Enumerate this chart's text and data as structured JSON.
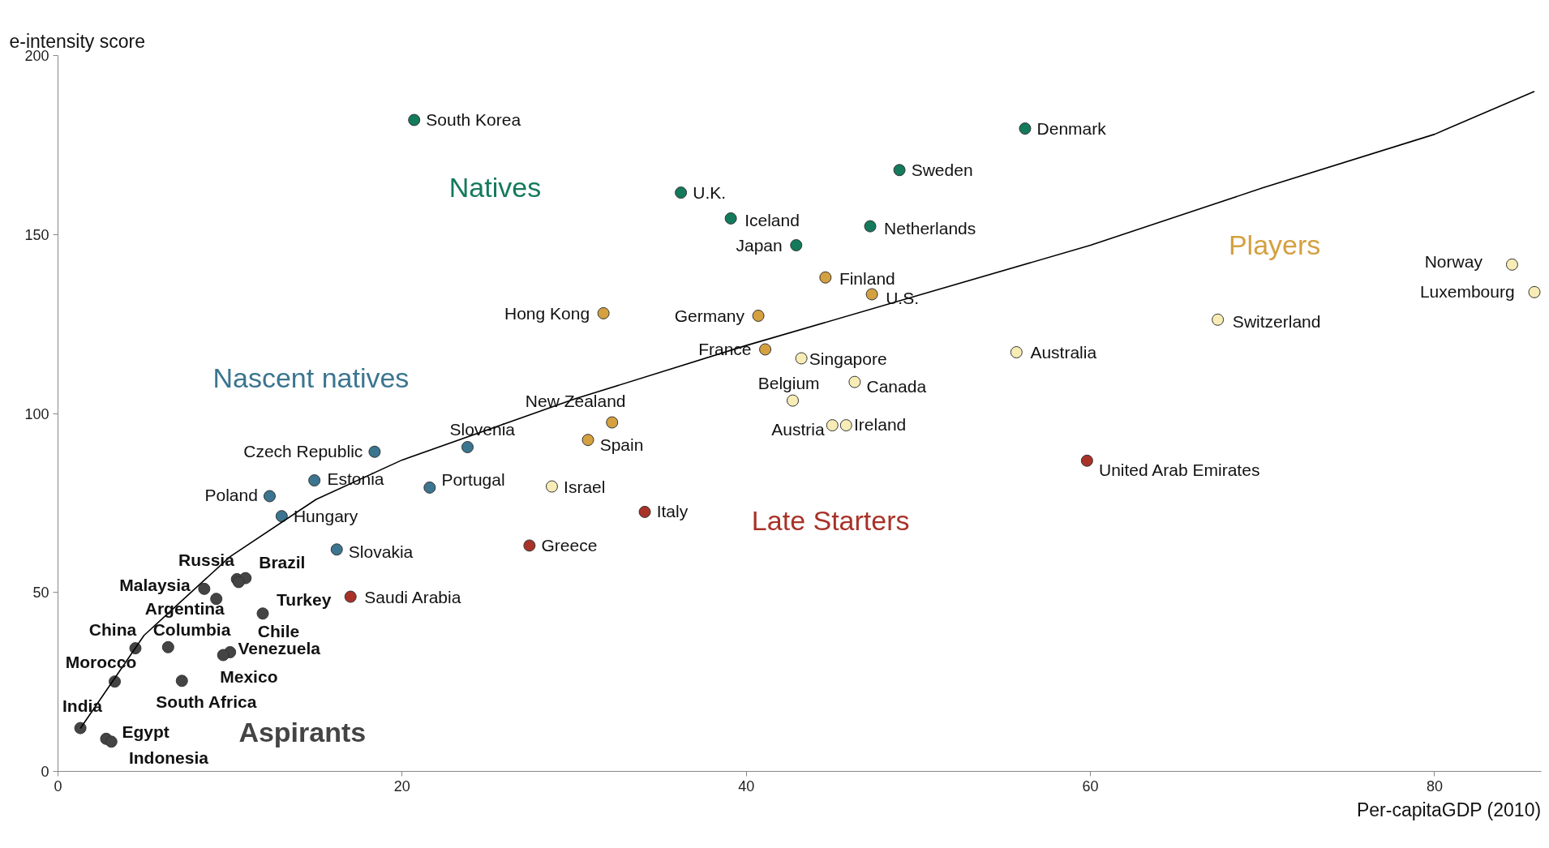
{
  "chart_data": {
    "type": "scatter",
    "xlabel": "Per-capitaGDP (2010)",
    "ylabel": "e-intensity score",
    "xlim": [
      0,
      86.2
    ],
    "ylim": [
      0,
      200
    ],
    "xticks": [
      0,
      20,
      40,
      60,
      80
    ],
    "yticks": [
      0,
      50,
      100,
      150,
      200
    ],
    "grid": false,
    "legend": false,
    "marker": "circle",
    "series": [
      {
        "name": "Natives",
        "color": "#137a5c",
        "x": [
          20.7,
          36.2,
          39.1,
          42.9,
          47.2,
          48.9,
          56.2
        ],
        "values": [
          182,
          161.7,
          154.5,
          147,
          152.3,
          168,
          179.6
        ]
      },
      {
        "name": "Players",
        "color": "#d4a040",
        "x": [
          31.7,
          40.7,
          44.6,
          47.3,
          41.1,
          32.2,
          30.8,
          43.2,
          42.7,
          46.3,
          45.0,
          45.8,
          55.7,
          67.4,
          84.5,
          85.8,
          28.7
        ],
        "values": [
          128,
          127.3,
          138,
          133.3,
          117.9,
          97.5,
          92.6,
          115.4,
          103.6,
          108.8,
          96.7,
          96.7,
          117.1,
          126.2,
          141.6,
          133.9,
          79.6
        ],
        "colors": [
          "#d4a040",
          "#d4a040",
          "#d4a040",
          "#d4a040",
          "#d4a040",
          "#d4a040",
          "#d4a040",
          "#f7ecb5",
          "#f7ecb5",
          "#f7ecb5",
          "#f7ecb5",
          "#f7ecb5",
          "#f7ecb5",
          "#f7ecb5",
          "#f7ecb5",
          "#f7ecb5",
          "#f7ecb5"
        ]
      },
      {
        "name": "Nascent natives",
        "color": "#3b7590",
        "x": [
          18.4,
          23.8,
          14.9,
          21.6,
          12.3,
          13.0,
          16.2
        ],
        "values": [
          89.3,
          90.6,
          81.3,
          79.3,
          76.9,
          71.3,
          62
        ]
      },
      {
        "name": "Late Starters",
        "color": "#a83228",
        "x": [
          59.8,
          34.1,
          27.4,
          17.0
        ],
        "values": [
          86.8,
          72.5,
          63.1,
          48.8
        ]
      },
      {
        "name": "Aspirants",
        "color": "#444444",
        "x": [
          10.4,
          10.9,
          10.5,
          8.5,
          9.2,
          11.9,
          4.5,
          6.4,
          10.0,
          9.6,
          3.3,
          7.2,
          1.3,
          2.8,
          3.1
        ],
        "values": [
          53.7,
          54,
          52.9,
          51,
          48.2,
          44.1,
          34.4,
          34.7,
          33.3,
          32.5,
          25.1,
          25.3,
          12.1,
          9.1,
          8.3
        ]
      },
      {
        "type": "line",
        "color": "#000000",
        "x": [
          1.3,
          5,
          10,
          15,
          20,
          30,
          40,
          50,
          60,
          70,
          80,
          85.8
        ],
        "values": [
          12,
          38,
          60,
          76,
          87,
          104,
          119,
          133,
          147,
          163,
          178,
          190
        ],
        "marker": "none"
      }
    ],
    "annotations": [
      {
        "text": "South  Korea",
        "x": 20.7,
        "y": 182
      },
      {
        "text": "U.K.",
        "x": 36.2,
        "y": 161.7
      },
      {
        "text": "Iceland",
        "x": 39.1,
        "y": 154.5
      },
      {
        "text": "Japan",
        "x": 42.9,
        "y": 147
      },
      {
        "text": "Netherlands",
        "x": 47.2,
        "y": 152.3
      },
      {
        "text": "Sweden",
        "x": 48.9,
        "y": 168
      },
      {
        "text": "Denmark",
        "x": 56.2,
        "y": 179.6
      },
      {
        "text": "Hong Kong",
        "x": 31.7,
        "y": 128
      },
      {
        "text": "Germany",
        "x": 40.7,
        "y": 127.3
      },
      {
        "text": "Finland",
        "x": 44.6,
        "y": 138
      },
      {
        "text": "U.S.",
        "x": 47.3,
        "y": 133.3
      },
      {
        "text": "France",
        "x": 41.1,
        "y": 117.9
      },
      {
        "text": "New Zealand",
        "x": 32.2,
        "y": 97.5
      },
      {
        "text": "Spain",
        "x": 30.8,
        "y": 92.6
      },
      {
        "text": "Singapore",
        "x": 43.2,
        "y": 115.4
      },
      {
        "text": "Belgium",
        "x": 42.7,
        "y": 103.6
      },
      {
        "text": "Canada",
        "x": 46.3,
        "y": 108.8
      },
      {
        "text": "Austria",
        "x": 45.0,
        "y": 96.7
      },
      {
        "text": "Ireland",
        "x": 45.8,
        "y": 96.7
      },
      {
        "text": "Australia",
        "x": 55.7,
        "y": 117.1
      },
      {
        "text": "Switzerland",
        "x": 67.4,
        "y": 126.2
      },
      {
        "text": "Norway",
        "x": 84.5,
        "y": 141.6
      },
      {
        "text": "Luxembourg",
        "x": 85.8,
        "y": 133.9
      },
      {
        "text": "Israel",
        "x": 28.7,
        "y": 79.6
      },
      {
        "text": "Czech Republic",
        "x": 18.4,
        "y": 89.3
      },
      {
        "text": "Slovenia",
        "x": 23.8,
        "y": 90.6
      },
      {
        "text": "Estonia",
        "x": 14.9,
        "y": 81.3
      },
      {
        "text": "Portugal",
        "x": 21.6,
        "y": 79.3
      },
      {
        "text": "Poland",
        "x": 12.3,
        "y": 76.9
      },
      {
        "text": "Hungary",
        "x": 13.0,
        "y": 71.3
      },
      {
        "text": "Slovakia",
        "x": 16.2,
        "y": 62
      },
      {
        "text": "United Arab Emirates",
        "x": 59.8,
        "y": 86.8
      },
      {
        "text": "Italy",
        "x": 34.1,
        "y": 72.5
      },
      {
        "text": "Greece",
        "x": 27.4,
        "y": 63.1
      },
      {
        "text": "Saudi Arabia",
        "x": 17.0,
        "y": 48.8
      },
      {
        "text": "Russia",
        "x": 10.4,
        "y": 53.7
      },
      {
        "text": "Brazil",
        "x": 10.9,
        "y": 54
      },
      {
        "text": "Turkey",
        "x": 10.5,
        "y": 52.9
      },
      {
        "text": "Malaysia",
        "x": 8.5,
        "y": 51
      },
      {
        "text": "Argentina",
        "x": 9.2,
        "y": 48.2
      },
      {
        "text": "Chile",
        "x": 11.9,
        "y": 44.1
      },
      {
        "text": "China",
        "x": 4.5,
        "y": 34.4
      },
      {
        "text": "Columbia",
        "x": 6.4,
        "y": 34.7
      },
      {
        "text": "Venezuela",
        "x": 10.0,
        "y": 33.3
      },
      {
        "text": "Mexico",
        "x": 9.6,
        "y": 32.5
      },
      {
        "text": "Morocco",
        "x": 3.3,
        "y": 25.1
      },
      {
        "text": "South Africa",
        "x": 7.2,
        "y": 25.3
      },
      {
        "text": "India",
        "x": 1.3,
        "y": 12.1
      },
      {
        "text": "Egypt",
        "x": 2.8,
        "y": 9.1
      },
      {
        "text": "Indonesia",
        "x": 3.1,
        "y": 8.3
      }
    ]
  }
}
